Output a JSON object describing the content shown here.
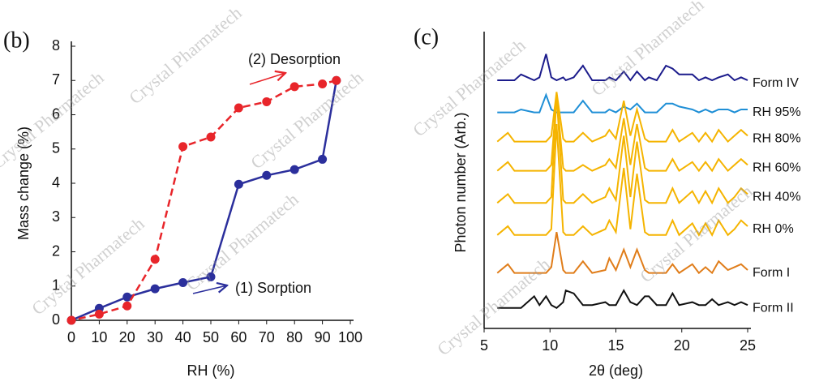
{
  "watermark": "Crystal Pharmatech",
  "chart_data": [
    {
      "type": "line",
      "panel": "(b)",
      "x_label": "RH (%)",
      "y_label": "Mass change (%)",
      "xlim": [
        0,
        100
      ],
      "xticks": [
        0,
        10,
        20,
        30,
        40,
        50,
        60,
        70,
        80,
        90,
        100
      ],
      "ylim": [
        0,
        8
      ],
      "yticks": [
        0,
        1,
        2,
        3,
        4,
        5,
        6,
        7,
        8
      ],
      "series": [
        {
          "name": "(1) Sorption",
          "color": "#2b2f9c",
          "linestyle": "solid",
          "x": [
            0,
            10,
            20,
            30,
            40,
            50,
            60,
            70,
            80,
            90,
            95
          ],
          "values": [
            0,
            0.35,
            0.68,
            0.92,
            1.1,
            1.27,
            3.97,
            4.23,
            4.4,
            4.7,
            7.0
          ]
        },
        {
          "name": "(2) Desorption",
          "color": "#e8252a",
          "linestyle": "dashed",
          "x": [
            95,
            90,
            80,
            70,
            60,
            50,
            40,
            30,
            20,
            10,
            0
          ],
          "values": [
            7.0,
            6.9,
            6.82,
            6.38,
            6.2,
            5.35,
            5.07,
            1.78,
            0.42,
            0.18,
            0
          ]
        }
      ]
    },
    {
      "type": "line",
      "panel": "(c)",
      "x_label": "2θ (deg)",
      "y_label": "Photon number (Arb.)",
      "xlim": [
        5,
        25
      ],
      "xticks": [
        5,
        10,
        15,
        20,
        25
      ],
      "ylim": [
        0,
        100
      ],
      "x": [
        6,
        6.8,
        7.3,
        7.8,
        8.8,
        9.2,
        9.7,
        10.1,
        10.5,
        11,
        11.2,
        11.8,
        12.5,
        13.2,
        14.2,
        14.5,
        15,
        15.6,
        16.1,
        16.6,
        17.2,
        17.5,
        18.1,
        18.8,
        19.3,
        19.8,
        20.8,
        21.3,
        21.8,
        22.3,
        22.8,
        23.5,
        24,
        24.5,
        25
      ],
      "series": [
        {
          "name": "Form IV",
          "color": "#1c1c8c",
          "values": [
            85,
            85,
            85,
            87,
            85,
            86,
            94,
            86,
            85,
            86,
            85,
            86,
            90,
            85,
            85,
            86,
            85,
            88,
            85,
            88,
            85,
            86,
            85,
            90,
            89,
            87,
            87,
            85,
            86,
            85,
            86,
            87,
            85,
            86,
            85
          ]
        },
        {
          "name": "RH 95%",
          "color": "#1f8fd6",
          "values": [
            74,
            74,
            74,
            75,
            74,
            74,
            80,
            75,
            74,
            74,
            74,
            74,
            78,
            74,
            74,
            75,
            74,
            76,
            75,
            77,
            74,
            74,
            74,
            77,
            77,
            76,
            75,
            74,
            75,
            74,
            75,
            75,
            74,
            75,
            75
          ]
        },
        {
          "name": "RH 80%",
          "color": "#f5b400",
          "values": [
            64,
            67,
            64,
            64,
            64,
            64,
            64,
            66,
            81,
            65,
            64,
            64,
            67,
            64,
            66,
            68,
            65,
            78,
            66,
            75,
            65,
            64,
            64,
            64,
            68,
            64,
            67,
            64,
            67,
            64,
            68,
            64,
            66,
            68,
            66
          ]
        },
        {
          "name": "RH 60%",
          "color": "#f5b400",
          "values": [
            54,
            57,
            54,
            54,
            54,
            54,
            54,
            56,
            80,
            55,
            54,
            54,
            56,
            54,
            56,
            58,
            55,
            72,
            56,
            70,
            55,
            54,
            54,
            54,
            58,
            54,
            57,
            54,
            57,
            54,
            58,
            54,
            56,
            58,
            56
          ]
        },
        {
          "name": "RH 40%",
          "color": "#f5b400",
          "values": [
            43,
            46,
            43,
            43,
            43,
            43,
            43,
            45,
            80,
            44,
            43,
            43,
            46,
            43,
            45,
            48,
            44,
            66,
            45,
            64,
            44,
            43,
            43,
            43,
            48,
            43,
            47,
            43,
            47,
            43,
            48,
            43,
            45,
            48,
            46
          ]
        },
        {
          "name": "RH 0%",
          "color": "#f5b400",
          "values": [
            32,
            35,
            32,
            32,
            32,
            32,
            32,
            34,
            70,
            33,
            32,
            32,
            35,
            32,
            34,
            37,
            33,
            55,
            34,
            53,
            33,
            32,
            32,
            32,
            37,
            32,
            36,
            32,
            36,
            32,
            37,
            32,
            34,
            37,
            35
          ]
        },
        {
          "name": "Form I",
          "color": "#e07d1a",
          "values": [
            19,
            22,
            19,
            19,
            19,
            19,
            19,
            21,
            33,
            20,
            19,
            19,
            23,
            19,
            20,
            24,
            20,
            27,
            21,
            27,
            20,
            19,
            19,
            19,
            22,
            19,
            22,
            19,
            21,
            19,
            23,
            20,
            21,
            22,
            20
          ]
        },
        {
          "name": "Form II",
          "color": "#111111",
          "values": [
            7,
            7,
            7,
            7,
            11,
            8,
            11,
            8,
            7,
            9,
            13,
            12,
            8,
            8,
            9,
            8,
            8,
            13,
            9,
            8,
            11,
            11,
            8,
            8,
            12,
            8,
            9,
            8,
            8,
            10,
            8,
            9,
            8,
            9,
            8
          ]
        }
      ]
    }
  ]
}
